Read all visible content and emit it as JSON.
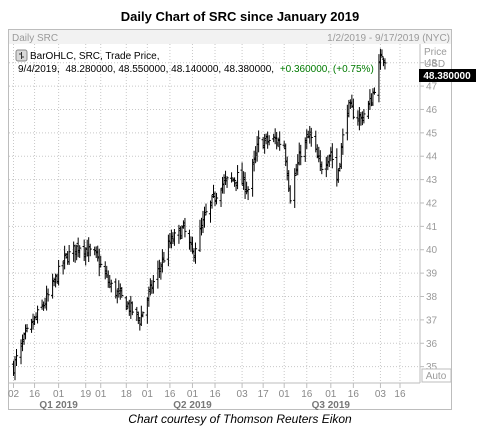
{
  "title": "Daily Chart of SRC since January 2019",
  "caption": "Chart courtesy of Thomson Reuters Eikon",
  "header": {
    "left": "Daily SRC",
    "right": "1/2/2019 - 9/17/2019 (NYC)"
  },
  "legend": {
    "series_label": "BarOHLC, SRC, Trade Price,",
    "date": "9/4/2019,",
    "values": "48.280000, 48.550000, 48.140000, 48.380000,",
    "change": "+0.360000, (+0.75%)"
  },
  "price_axis": {
    "label_top": "Price",
    "label_bottom": "USD",
    "current": "48.380000",
    "auto": "Auto"
  },
  "colors": {
    "bars": "#000000",
    "change": "#007a00",
    "grid": "#c8c8c8",
    "current_bg": "#000000"
  },
  "chart_data": {
    "type": "ohlc",
    "title": "Daily Chart of SRC since January 2019",
    "ylim": [
      34.3,
      48.8
    ],
    "yticks": [
      35,
      36,
      37,
      38,
      39,
      40,
      41,
      42,
      43,
      44,
      45,
      46,
      47,
      48
    ],
    "xlim": [
      "2019-01-01",
      "2019-09-18"
    ],
    "xticks": [
      {
        "date": "2019-01-02",
        "label": "02"
      },
      {
        "date": "2019-01-16",
        "label": "16"
      },
      {
        "date": "2019-02-01",
        "label": "01"
      },
      {
        "date": "2019-02-19",
        "label": "19"
      },
      {
        "date": "2019-03-01",
        "label": "01"
      },
      {
        "date": "2019-03-18",
        "label": "18"
      },
      {
        "date": "2019-04-01",
        "label": "01"
      },
      {
        "date": "2019-04-16",
        "label": "16"
      },
      {
        "date": "2019-05-01",
        "label": "01"
      },
      {
        "date": "2019-05-16",
        "label": "16"
      },
      {
        "date": "2019-06-03",
        "label": "03"
      },
      {
        "date": "2019-06-17",
        "label": "17"
      },
      {
        "date": "2019-07-01",
        "label": "01"
      },
      {
        "date": "2019-07-16",
        "label": "16"
      },
      {
        "date": "2019-08-01",
        "label": "01"
      },
      {
        "date": "2019-08-16",
        "label": "16"
      },
      {
        "date": "2019-09-03",
        "label": "03"
      },
      {
        "date": "2019-09-16",
        "label": "16"
      }
    ],
    "quarters": [
      {
        "date": "2019-02-01",
        "label": "Q1 2019"
      },
      {
        "date": "2019-05-01",
        "label": "Q2 2019"
      },
      {
        "date": "2019-08-01",
        "label": "Q3 2019"
      }
    ],
    "trend_points": [
      [
        "2019-01-02",
        35.0
      ],
      [
        "2019-01-10",
        36.3
      ],
      [
        "2019-01-25",
        38.0
      ],
      [
        "2019-02-05",
        39.6
      ],
      [
        "2019-02-15",
        40.2
      ],
      [
        "2019-02-26",
        39.7
      ],
      [
        "2019-03-07",
        38.5
      ],
      [
        "2019-03-18",
        37.7
      ],
      [
        "2019-03-27",
        37.0
      ],
      [
        "2019-04-05",
        38.6
      ],
      [
        "2019-04-16",
        40.3
      ],
      [
        "2019-04-25",
        40.9
      ],
      [
        "2019-05-01",
        39.8
      ],
      [
        "2019-05-10",
        41.5
      ],
      [
        "2019-05-20",
        42.8
      ],
      [
        "2019-05-31",
        43.1
      ],
      [
        "2019-06-07",
        42.6
      ],
      [
        "2019-06-14",
        44.6
      ],
      [
        "2019-06-25",
        44.7
      ],
      [
        "2019-07-01",
        44.5
      ],
      [
        "2019-07-05",
        42.3
      ],
      [
        "2019-07-12",
        44.2
      ],
      [
        "2019-07-18",
        44.9
      ],
      [
        "2019-07-25",
        43.5
      ],
      [
        "2019-08-01",
        44.2
      ],
      [
        "2019-08-05",
        43.0
      ],
      [
        "2019-08-12",
        46.1
      ],
      [
        "2019-08-21",
        45.6
      ],
      [
        "2019-08-28",
        46.4
      ],
      [
        "2019-09-04",
        48.38
      ],
      [
        "2019-09-06",
        48.2
      ]
    ]
  }
}
